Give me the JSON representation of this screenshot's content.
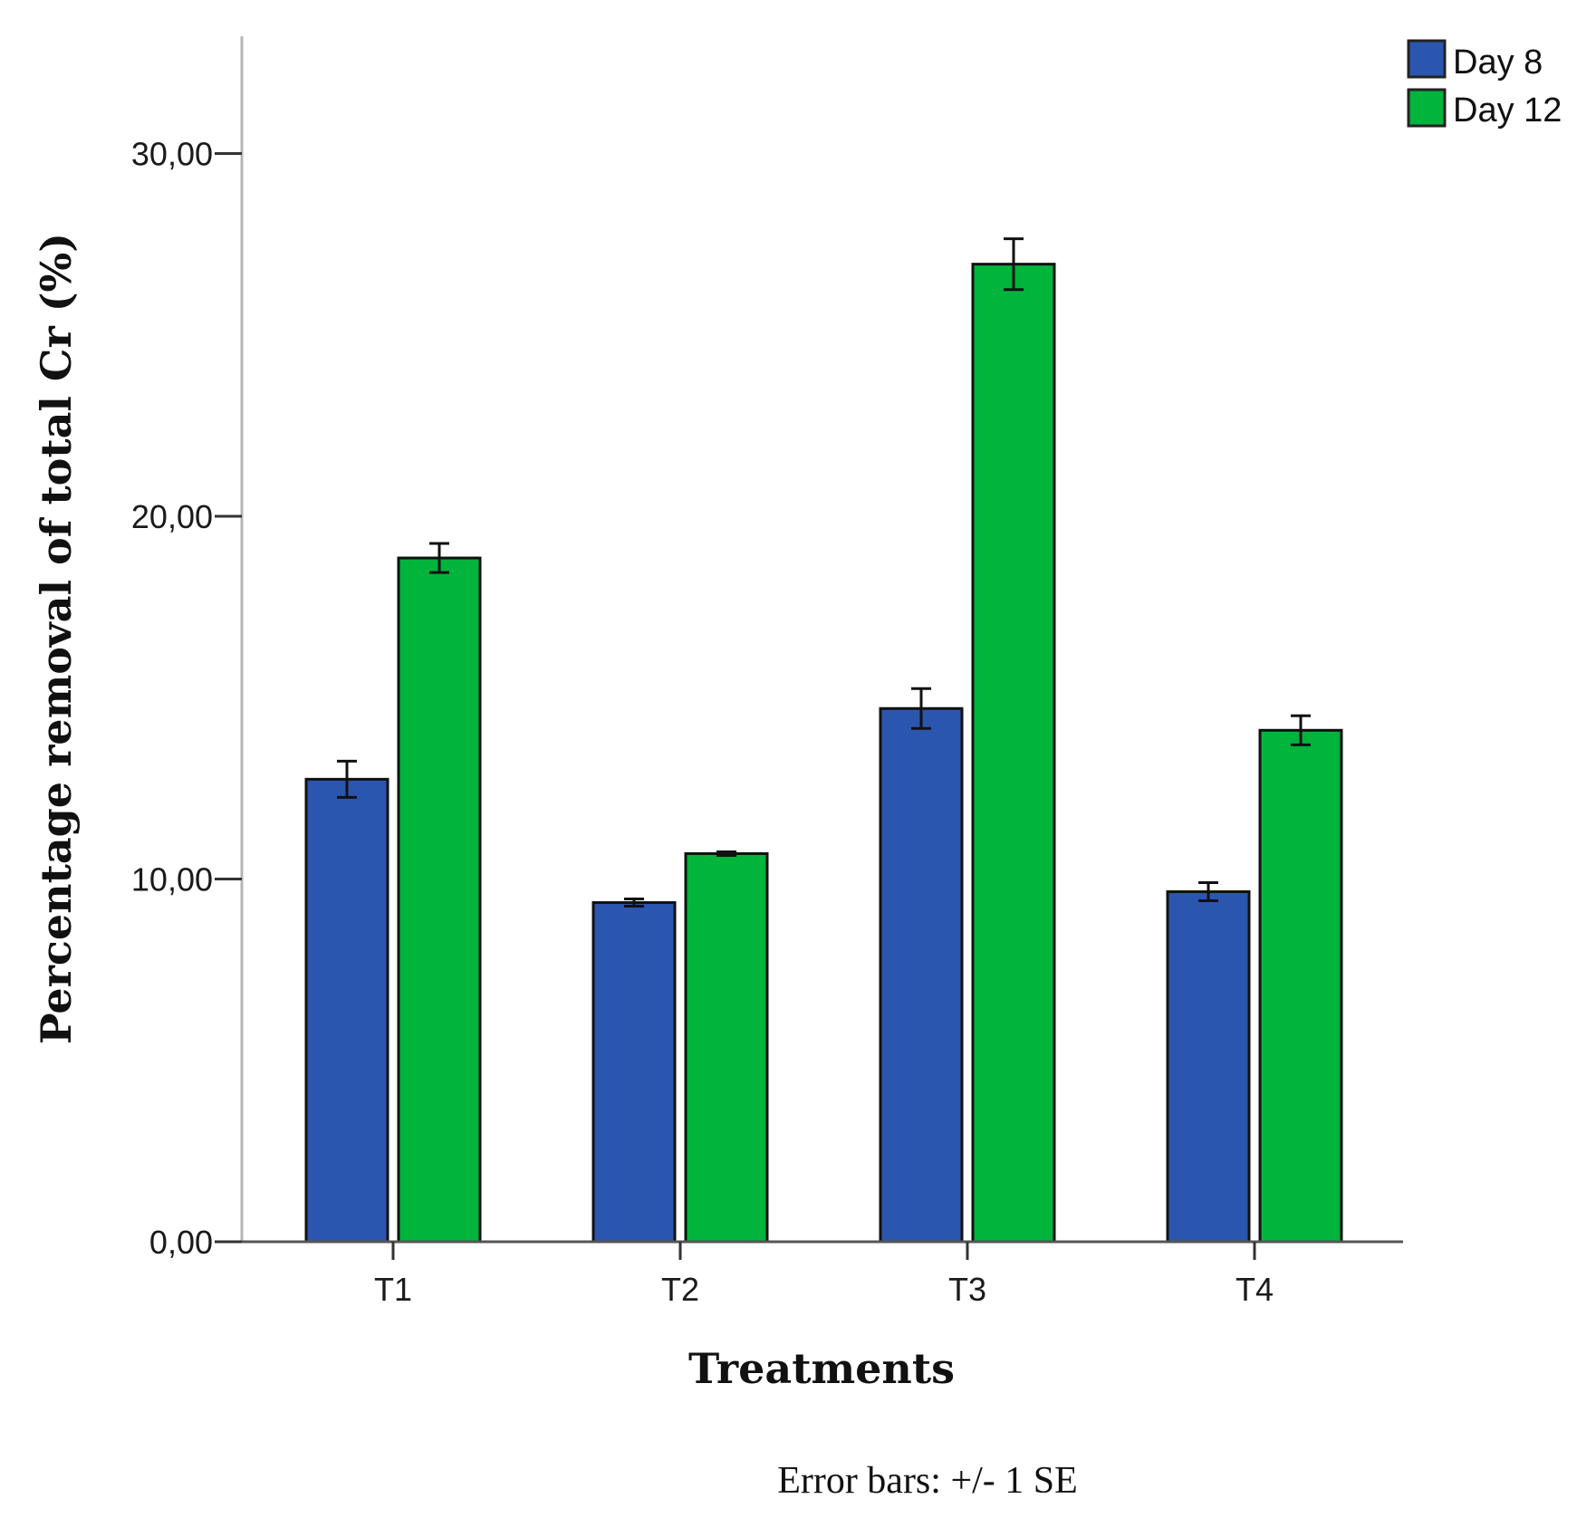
{
  "chart_data": {
    "type": "bar",
    "title": "",
    "xlabel": "Treatments",
    "ylabel": "Percentage removal of total Cr (%)",
    "categories": [
      "T1",
      "T2",
      "T3",
      "T4"
    ],
    "series": [
      {
        "name": "Day 8",
        "color": "#2b56b0",
        "values": [
          12.75,
          9.35,
          14.7,
          9.65
        ],
        "errors": [
          0.5,
          0.1,
          0.55,
          0.25
        ]
      },
      {
        "name": "Day 12",
        "color": "#00b43c",
        "values": [
          18.85,
          10.7,
          26.95,
          14.1
        ],
        "errors": [
          0.4,
          0.05,
          0.7,
          0.4
        ]
      }
    ],
    "ylim": [
      0,
      33
    ],
    "yticks": [
      0,
      10,
      20,
      30
    ],
    "ytick_labels": [
      "0,00",
      "10,00",
      "20,00",
      "30,00"
    ],
    "grid": false,
    "legend_position": "top-right",
    "note": "Error bars: +/- 1 SE"
  }
}
